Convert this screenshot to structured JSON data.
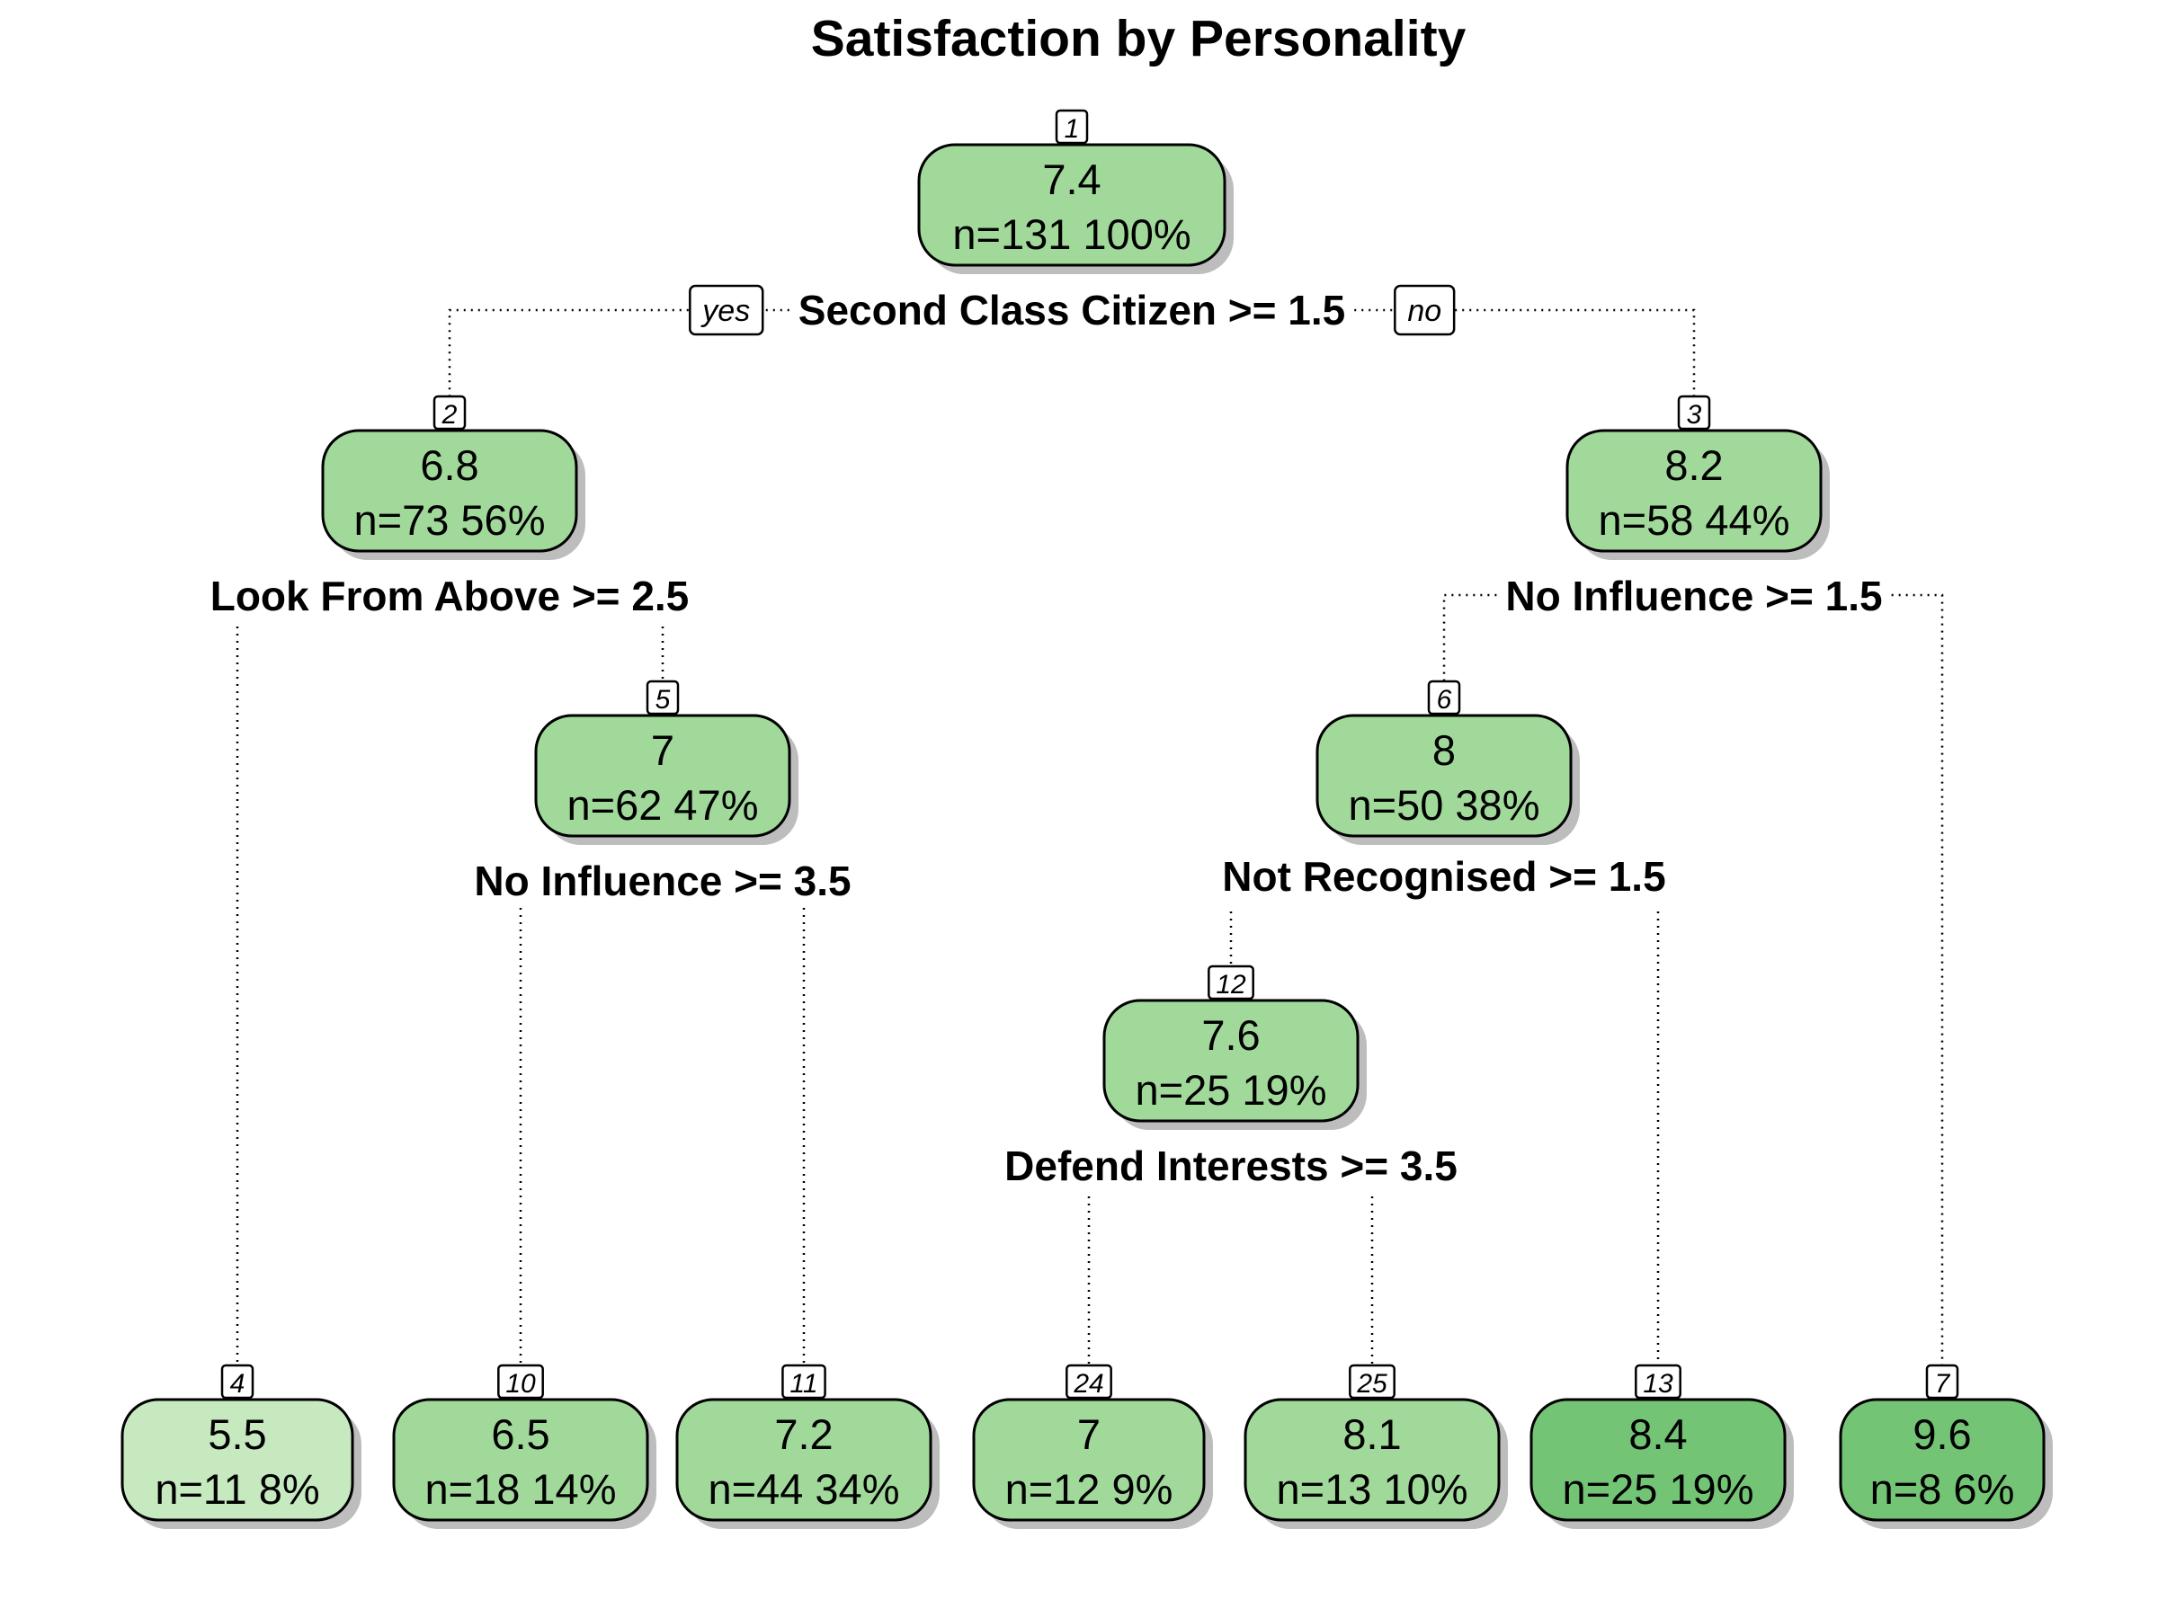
{
  "title": "Satisfaction by Personality",
  "branch_labels": {
    "yes": "yes",
    "no": "no"
  },
  "colors": {
    "light": "#c7e9c0",
    "medium": "#a1d99b",
    "dark": "#74c476",
    "stroke": "#000000",
    "shadow": "#bdbdbd"
  },
  "nodes": [
    {
      "id": "1",
      "value": "7.4",
      "stats": "n=131  100%",
      "fill": "medium",
      "split": "Second Class Citizen >= 1.5"
    },
    {
      "id": "2",
      "value": "6.8",
      "stats": "n=73  56%",
      "fill": "medium",
      "split": "Look From Above >= 2.5"
    },
    {
      "id": "3",
      "value": "8.2",
      "stats": "n=58  44%",
      "fill": "medium",
      "split": "No Influence >= 1.5"
    },
    {
      "id": "5",
      "value": "7",
      "stats": "n=62  47%",
      "fill": "medium",
      "split": "No Influence >= 3.5"
    },
    {
      "id": "6",
      "value": "8",
      "stats": "n=50  38%",
      "fill": "medium",
      "split": "Not Recognised >= 1.5"
    },
    {
      "id": "12",
      "value": "7.6",
      "stats": "n=25  19%",
      "fill": "medium",
      "split": "Defend Interests >= 3.5"
    },
    {
      "id": "4",
      "value": "5.5",
      "stats": "n=11  8%",
      "fill": "light"
    },
    {
      "id": "10",
      "value": "6.5",
      "stats": "n=18  14%",
      "fill": "medium"
    },
    {
      "id": "11",
      "value": "7.2",
      "stats": "n=44  34%",
      "fill": "medium"
    },
    {
      "id": "24",
      "value": "7",
      "stats": "n=12  9%",
      "fill": "medium"
    },
    {
      "id": "25",
      "value": "8.1",
      "stats": "n=13  10%",
      "fill": "medium"
    },
    {
      "id": "13",
      "value": "8.4",
      "stats": "n=25  19%",
      "fill": "dark"
    },
    {
      "id": "7",
      "value": "9.6",
      "stats": "n=8  6%",
      "fill": "dark"
    }
  ],
  "edges": [
    {
      "from": "1",
      "to": "2"
    },
    {
      "from": "1",
      "to": "3"
    },
    {
      "from": "2",
      "to": "4"
    },
    {
      "from": "2",
      "to": "5"
    },
    {
      "from": "5",
      "to": "10"
    },
    {
      "from": "5",
      "to": "11"
    },
    {
      "from": "3",
      "to": "6"
    },
    {
      "from": "3",
      "to": "7"
    },
    {
      "from": "6",
      "to": "12"
    },
    {
      "from": "6",
      "to": "13"
    },
    {
      "from": "12",
      "to": "24"
    },
    {
      "from": "12",
      "to": "25"
    }
  ]
}
